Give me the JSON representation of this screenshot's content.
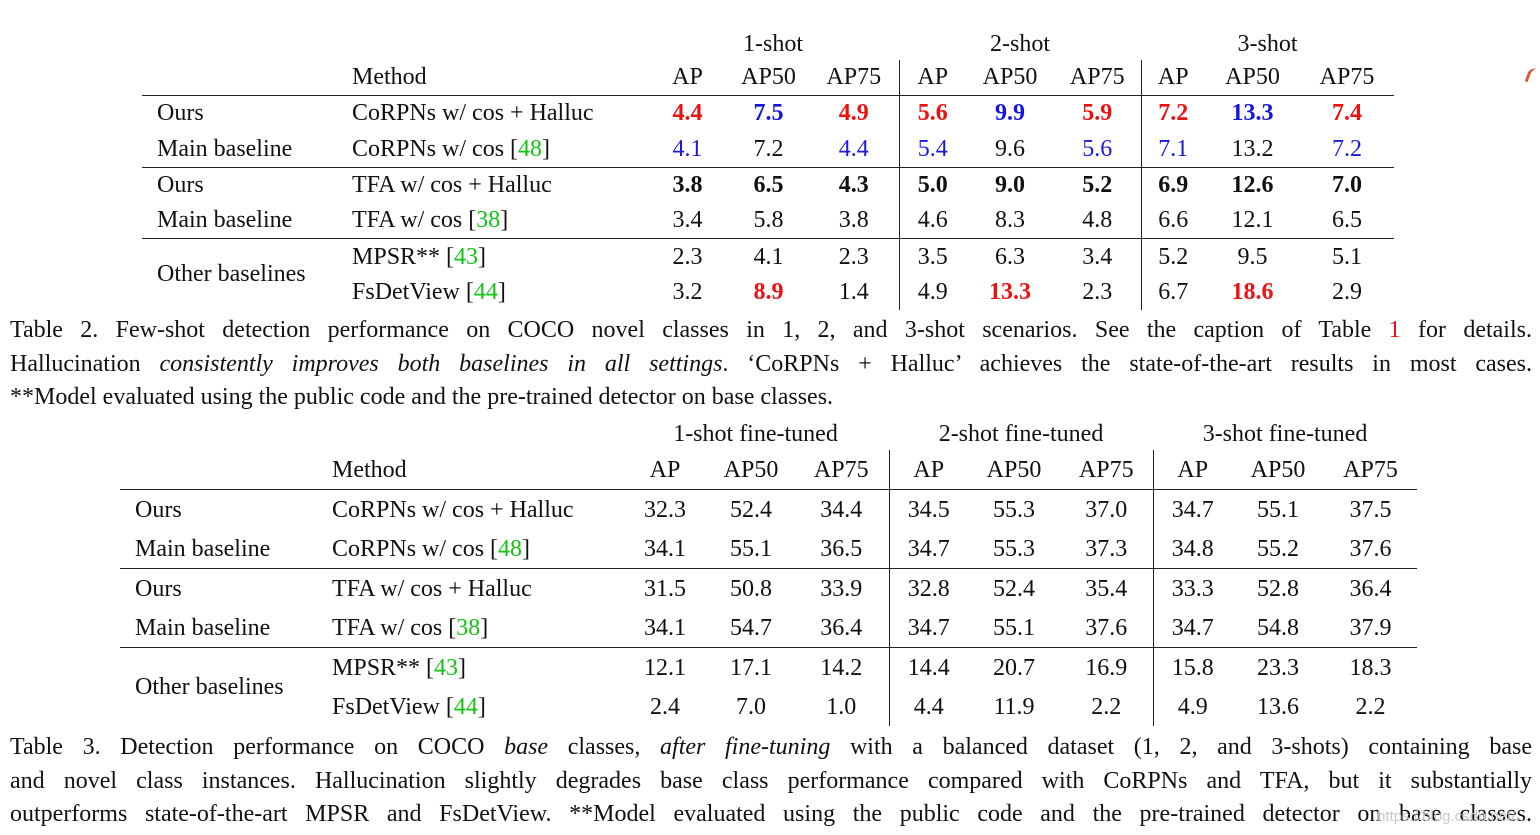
{
  "table2": {
    "method_header": "Method",
    "groups": [
      "1-shot",
      "2-shot",
      "3-shot"
    ],
    "metrics": [
      "AP",
      "AP50",
      "AP75"
    ],
    "rows": [
      {
        "label": "Ours",
        "method": "CoRPNs w/ cos + Halluc",
        "cite": "",
        "values": [
          "4.4",
          "7.5",
          "4.9",
          "5.6",
          "9.9",
          "5.9",
          "7.2",
          "13.3",
          "7.4"
        ],
        "styles": [
          "red",
          "blue",
          "red",
          "red",
          "blue",
          "red",
          "red",
          "blue",
          "red"
        ]
      },
      {
        "label": "Main baseline",
        "method": "CoRPNs w/ cos",
        "cite": "48",
        "values": [
          "4.1",
          "7.2",
          "4.4",
          "5.4",
          "9.6",
          "5.6",
          "7.1",
          "13.2",
          "7.2"
        ],
        "styles": [
          "blue-n",
          "",
          "blue-n",
          "blue-n",
          "",
          "blue-n",
          "blue-n",
          "",
          "blue-n"
        ]
      },
      {
        "label": "Ours",
        "method": "TFA w/ cos + Halluc",
        "cite": "",
        "values": [
          "3.8",
          "6.5",
          "4.3",
          "5.0",
          "9.0",
          "5.2",
          "6.9",
          "12.6",
          "7.0"
        ],
        "styles": [
          "b",
          "b",
          "b",
          "b",
          "b",
          "b",
          "b",
          "b",
          "b"
        ]
      },
      {
        "label": "Main baseline",
        "method": "TFA w/ cos",
        "cite": "38",
        "values": [
          "3.4",
          "5.8",
          "3.8",
          "4.6",
          "8.3",
          "4.8",
          "6.6",
          "12.1",
          "6.5"
        ],
        "styles": [
          "",
          "",
          "",
          "",
          "",
          "",
          "",
          "",
          ""
        ]
      },
      {
        "label": "Other baselines",
        "method": "MPSR**",
        "cite": "43",
        "values": [
          "2.3",
          "4.1",
          "2.3",
          "3.5",
          "6.3",
          "3.4",
          "5.2",
          "9.5",
          "5.1"
        ],
        "styles": [
          "",
          "",
          "",
          "",
          "",
          "",
          "",
          "",
          ""
        ]
      },
      {
        "label": "",
        "method": "FsDetView",
        "cite": "44",
        "values": [
          "3.2",
          "8.9",
          "1.4",
          "4.9",
          "13.3",
          "2.3",
          "6.7",
          "18.6",
          "2.9"
        ],
        "styles": [
          "",
          "red",
          "",
          "",
          "red",
          "",
          "",
          "red",
          ""
        ]
      }
    ],
    "caption": {
      "l1a": "Table 2. Few-shot detection performance on COCO novel classes in 1, 2, and 3-shot scenarios. See the caption of Table ",
      "l1ref": "1",
      "l1b": " for details.",
      "l2a": "Hallucination ",
      "l2i": "consistently improves both baselines in all settings",
      "l2b": ". ‘CoRPNs + Halluc’ achieves the state-of-the-art results in most cases.",
      "l3": "**Model evaluated using the public code and the pre-trained detector on base classes."
    }
  },
  "table3": {
    "method_header": "Method",
    "groups": [
      "1-shot fine-tuned",
      "2-shot fine-tuned",
      "3-shot fine-tuned"
    ],
    "metrics": [
      "AP",
      "AP50",
      "AP75"
    ],
    "rows": [
      {
        "label": "Ours",
        "method": "CoRPNs w/ cos + Halluc",
        "cite": "",
        "values": [
          "32.3",
          "52.4",
          "34.4",
          "34.5",
          "55.3",
          "37.0",
          "34.7",
          "55.1",
          "37.5"
        ]
      },
      {
        "label": "Main baseline",
        "method": "CoRPNs w/ cos",
        "cite": "48",
        "values": [
          "34.1",
          "55.1",
          "36.5",
          "34.7",
          "55.3",
          "37.3",
          "34.8",
          "55.2",
          "37.6"
        ]
      },
      {
        "label": "Ours",
        "method": "TFA w/ cos + Halluc",
        "cite": "",
        "values": [
          "31.5",
          "50.8",
          "33.9",
          "32.8",
          "52.4",
          "35.4",
          "33.3",
          "52.8",
          "36.4"
        ]
      },
      {
        "label": "Main baseline",
        "method": "TFA w/ cos",
        "cite": "38",
        "values": [
          "34.1",
          "54.7",
          "36.4",
          "34.7",
          "55.1",
          "37.6",
          "34.7",
          "54.8",
          "37.9"
        ]
      },
      {
        "label": "Other baselines",
        "method": "MPSR**",
        "cite": "43",
        "values": [
          "12.1",
          "17.1",
          "14.2",
          "14.4",
          "20.7",
          "16.9",
          "15.8",
          "23.3",
          "18.3"
        ]
      },
      {
        "label": "",
        "method": "FsDetView",
        "cite": "44",
        "values": [
          "2.4",
          "7.0",
          "1.0",
          "4.4",
          "11.9",
          "2.2",
          "4.9",
          "13.6",
          "2.2"
        ]
      }
    ],
    "caption": {
      "l1a": "Table 3. Detection performance on COCO ",
      "l1i1": "base",
      "l1b": " classes, ",
      "l1i2": "after fine-tuning",
      "l1c": " with a balanced dataset (1, 2, and 3-shots) containing base",
      "l2": "and novel class instances. Hallucination slightly degrades base class performance compared with CoRPNs and TFA, but it substantially",
      "l3": "outperforms state-of-the-art MPSR and FsDetView. **Model evaluated using the public code and the pre-trained detector on base classes."
    }
  },
  "colors": {
    "best": "#ee1111",
    "second": "#1515dd",
    "citation": "#11c411"
  },
  "icons": [
    "cursor-mark-icon"
  ],
  "watermark": "https://blog.csdn.net/..."
}
